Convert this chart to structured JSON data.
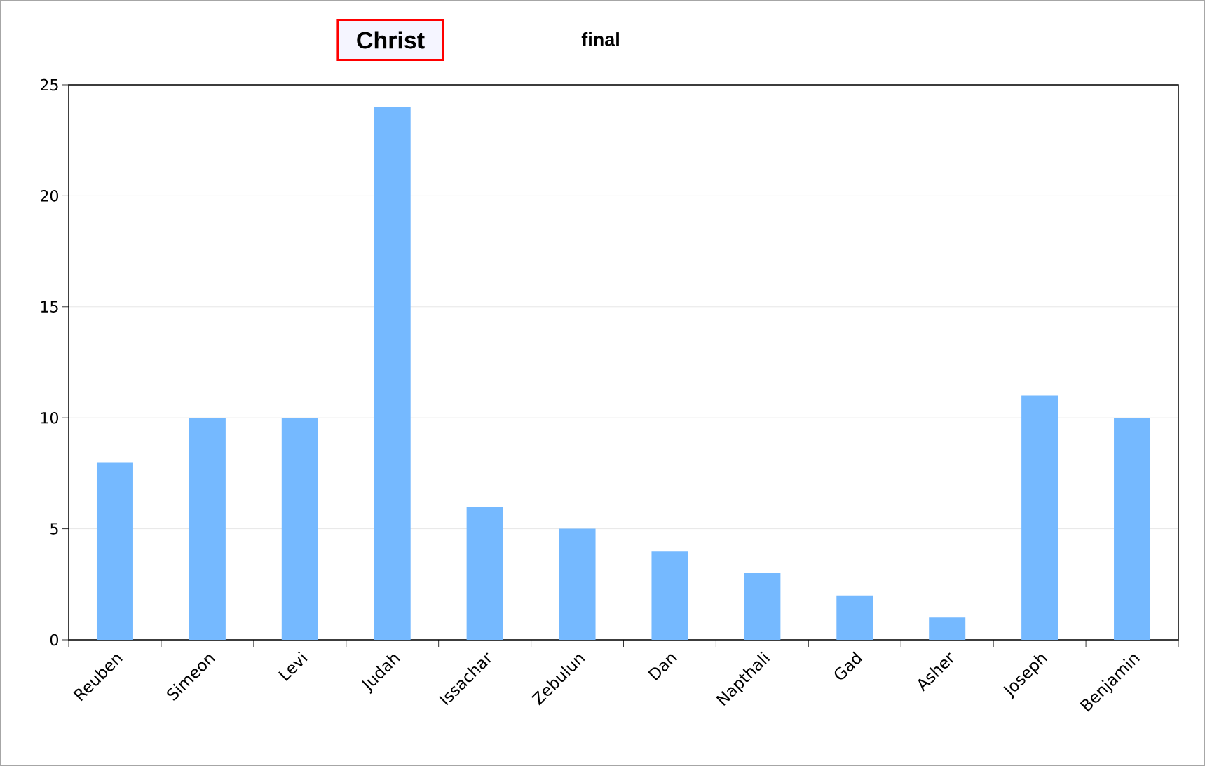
{
  "chart_data": {
    "type": "bar",
    "title": "Christ",
    "subtitle": "final",
    "categories": [
      "Reuben",
      "Simeon",
      "Levi",
      "Judah",
      "Issachar",
      "Zebulun",
      "Dan",
      "Napthali",
      "Gad",
      "Asher",
      "Joseph",
      "Benjamin"
    ],
    "values": [
      8,
      10,
      10,
      24,
      6,
      5,
      4,
      3,
      2,
      1,
      11,
      10
    ],
    "color": "#75b9ff",
    "ylim": [
      0,
      25
    ],
    "yticks": [
      0,
      5,
      10,
      15,
      20,
      25
    ],
    "grid": "y"
  }
}
